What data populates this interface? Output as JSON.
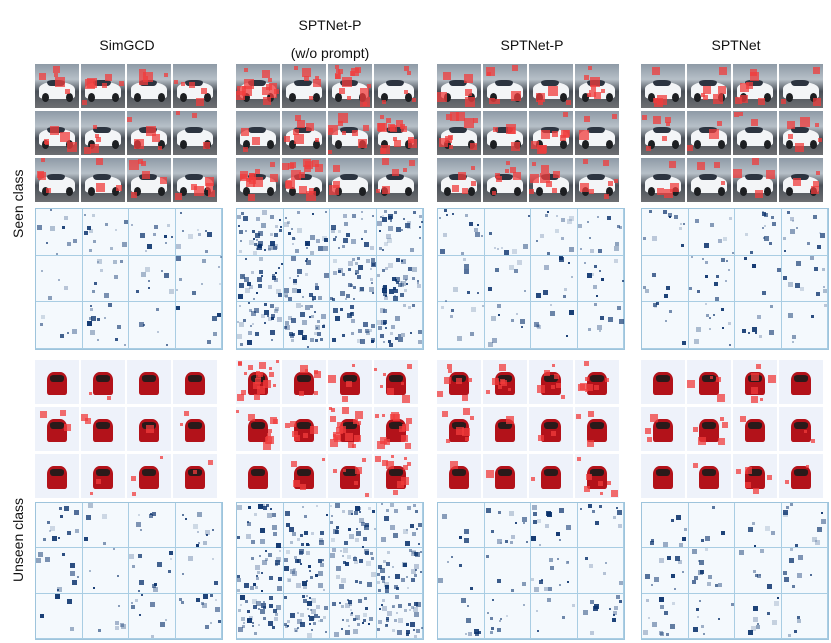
{
  "columns": [
    {
      "title_line1": "SimGCD",
      "title_line2": ""
    },
    {
      "title_line1": "SPTNet-P",
      "title_line2": "(w/o prompt)"
    },
    {
      "title_line1": "SPTNet-P",
      "title_line2": ""
    },
    {
      "title_line1": "SPTNet",
      "title_line2": ""
    }
  ],
  "row_labels": {
    "seen": "Seen class",
    "unseen": "Unseen class"
  },
  "colors": {
    "highlight_red": "#f03c3c",
    "attention_blue": "#08306b",
    "grid_border": "#9ec4dc"
  }
}
